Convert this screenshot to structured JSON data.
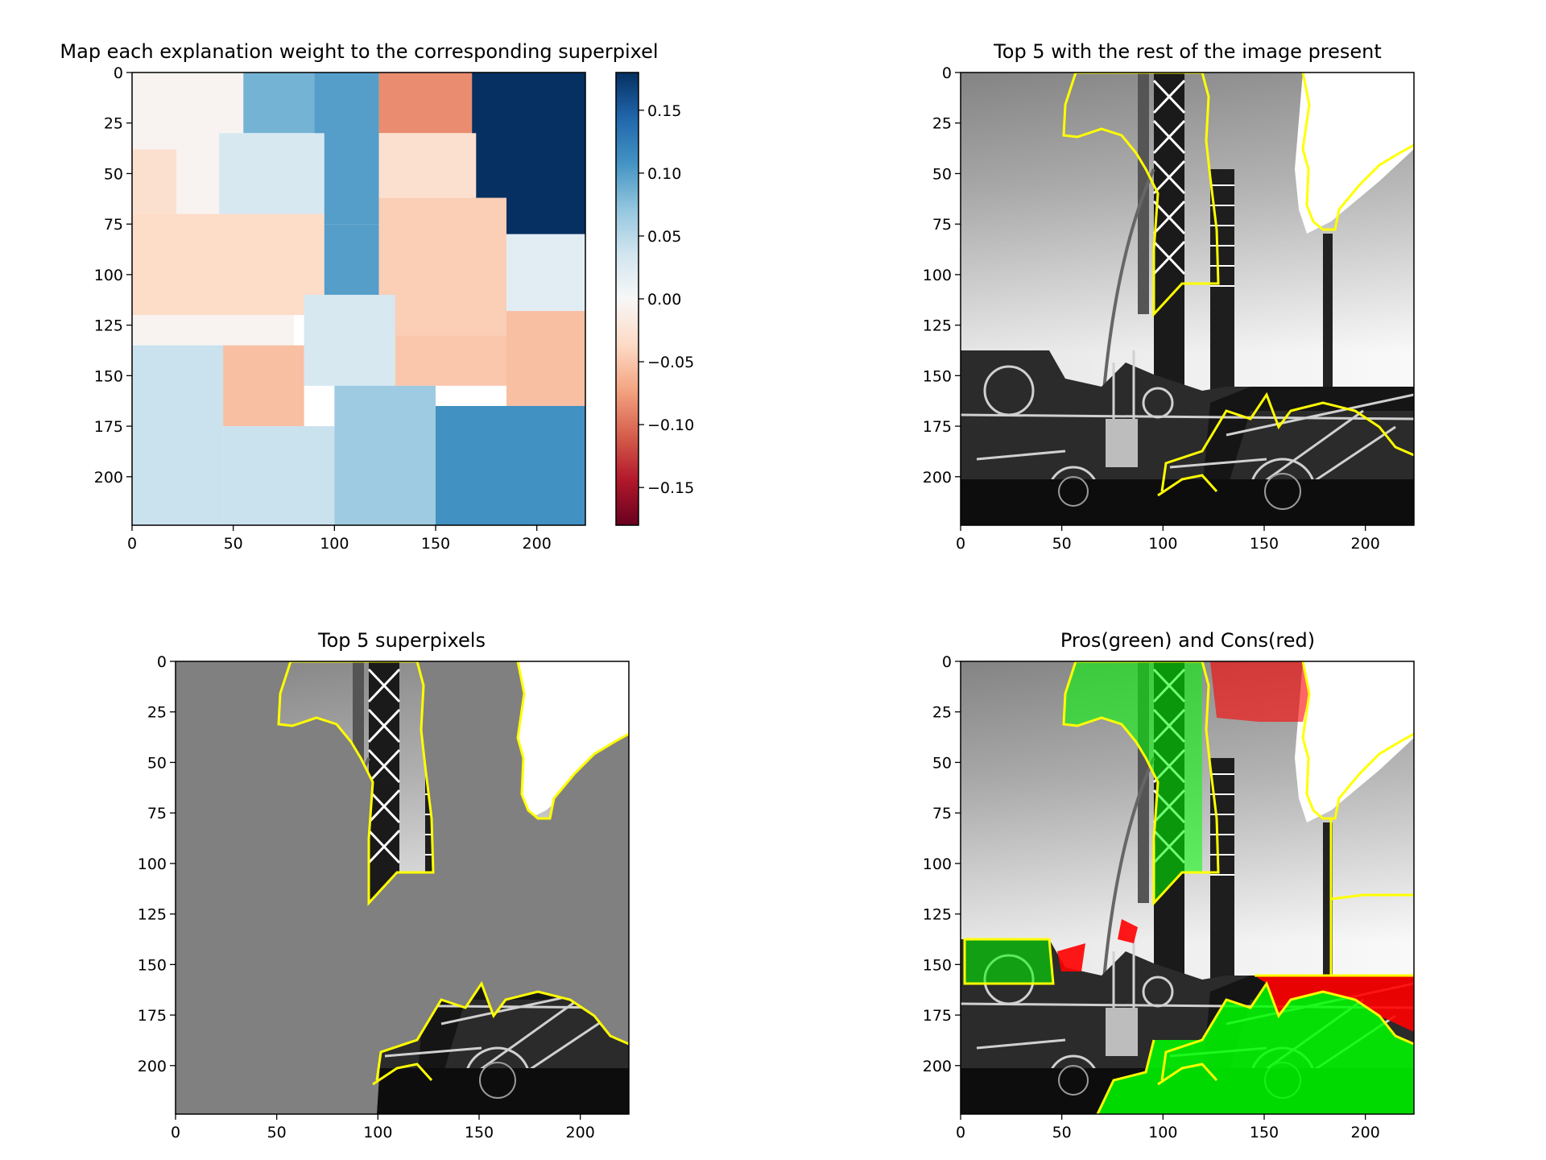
{
  "chart_data": [
    {
      "type": "heatmap",
      "title": "Map each explanation weight to the corresponding superpixel",
      "xlim": [
        0,
        224
      ],
      "ylim": [
        224,
        0
      ],
      "xticks": [
        0,
        50,
        100,
        150,
        200
      ],
      "yticks": [
        0,
        25,
        50,
        75,
        100,
        125,
        150,
        175,
        200
      ],
      "colormap": "RdBu",
      "colorbar": {
        "vmin": -0.18,
        "vmax": 0.18,
        "ticks": [
          0.15,
          0.1,
          0.05,
          0.0,
          -0.05,
          -0.1,
          -0.15
        ],
        "tick_labels": [
          "0.15",
          "0.10",
          "0.05",
          "0.00",
          "−0.05",
          "−0.10",
          "−0.15"
        ]
      },
      "regions": [
        {
          "x": [
            0,
            55
          ],
          "y": [
            0,
            38
          ],
          "weight": -0.005
        },
        {
          "x": [
            55,
            90
          ],
          "y": [
            0,
            30
          ],
          "weight": 0.085
        },
        {
          "x": [
            90,
            122
          ],
          "y": [
            0,
            75
          ],
          "weight": 0.1
        },
        {
          "x": [
            122,
            195
          ],
          "y": [
            0,
            30
          ],
          "weight": -0.085
        },
        {
          "x": [
            168,
            224
          ],
          "y": [
            0,
            80
          ],
          "weight": 0.18
        },
        {
          "x": [
            0,
            22
          ],
          "y": [
            38,
            70
          ],
          "weight": -0.03
        },
        {
          "x": [
            22,
            55
          ],
          "y": [
            38,
            70
          ],
          "weight": -0.005
        },
        {
          "x": [
            43,
            95
          ],
          "y": [
            30,
            72
          ],
          "weight": 0.03
        },
        {
          "x": [
            122,
            170
          ],
          "y": [
            30,
            62
          ],
          "weight": -0.03
        },
        {
          "x": [
            0,
            95
          ],
          "y": [
            70,
            120
          ],
          "weight": -0.035
        },
        {
          "x": [
            95,
            122
          ],
          "y": [
            75,
            110
          ],
          "weight": 0.1
        },
        {
          "x": [
            122,
            185
          ],
          "y": [
            62,
            130
          ],
          "weight": -0.045
        },
        {
          "x": [
            185,
            224
          ],
          "y": [
            80,
            118
          ],
          "weight": 0.02
        },
        {
          "x": [
            0,
            80
          ],
          "y": [
            120,
            135
          ],
          "weight": -0.005
        },
        {
          "x": [
            0,
            45
          ],
          "y": [
            135,
            224
          ],
          "weight": 0.04
        },
        {
          "x": [
            45,
            85
          ],
          "y": [
            135,
            175
          ],
          "weight": -0.055
        },
        {
          "x": [
            85,
            130
          ],
          "y": [
            110,
            155
          ],
          "weight": 0.03
        },
        {
          "x": [
            130,
            185
          ],
          "y": [
            130,
            155
          ],
          "weight": -0.05
        },
        {
          "x": [
            185,
            224
          ],
          "y": [
            118,
            195
          ],
          "weight": -0.055
        },
        {
          "x": [
            45,
            100
          ],
          "y": [
            175,
            224
          ],
          "weight": 0.04
        },
        {
          "x": [
            100,
            150
          ],
          "y": [
            155,
            224
          ],
          "weight": 0.065
        },
        {
          "x": [
            150,
            224
          ],
          "y": [
            165,
            224
          ],
          "weight": 0.11
        }
      ]
    },
    {
      "type": "image",
      "title": "Top 5 with the rest of the image present",
      "xlim": [
        0,
        224
      ],
      "ylim": [
        224,
        0
      ],
      "xticks": [
        0,
        50,
        100,
        150,
        200
      ],
      "yticks": [
        0,
        25,
        50,
        75,
        100,
        125,
        150,
        175,
        200
      ],
      "outline_color": "#ffff00"
    },
    {
      "type": "image",
      "title": "Top 5 superpixels",
      "xlim": [
        0,
        224
      ],
      "ylim": [
        224,
        0
      ],
      "xticks": [
        0,
        50,
        100,
        150,
        200
      ],
      "yticks": [
        0,
        25,
        50,
        75,
        100,
        125,
        150,
        175,
        200
      ],
      "outline_color": "#ffff00",
      "background_color": "#808080"
    },
    {
      "type": "image",
      "title": "Pros(green) and Cons(red)",
      "xlim": [
        0,
        224
      ],
      "ylim": [
        224,
        0
      ],
      "xticks": [
        0,
        50,
        100,
        150,
        200
      ],
      "yticks": [
        0,
        25,
        50,
        75,
        100,
        125,
        150,
        175,
        200
      ],
      "outline_color": "#ffff00",
      "pros_color": "#00ff00",
      "cons_color": "#ff0000"
    }
  ]
}
